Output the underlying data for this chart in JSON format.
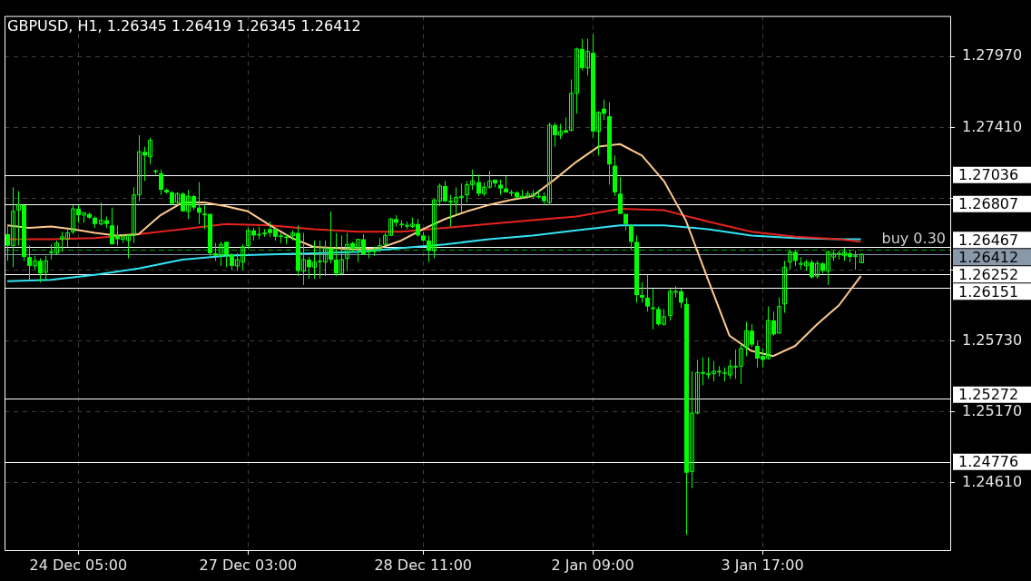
{
  "chart_data": {
    "type": "candlestick",
    "title": "GBPUSD, H1, 1.26345 1.26419 1.26345 1.26412",
    "categories": [
      null,
      null,
      null,
      null,
      null,
      null,
      null,
      null,
      null,
      null,
      null,
      null,
      null,
      "24 Dec 05:00",
      null,
      null,
      null,
      null,
      null,
      null,
      null,
      null,
      null,
      null,
      null,
      null,
      null,
      null,
      null,
      null,
      null,
      null,
      null,
      null,
      null,
      null,
      null,
      null,
      null,
      null,
      null,
      null,
      null,
      null,
      "27 Dec 03:00",
      null,
      null,
      null,
      null,
      null,
      null,
      null,
      null,
      null,
      null,
      null,
      null,
      null,
      null,
      null,
      null,
      null,
      null,
      null,
      null,
      null,
      null,
      null,
      null,
      null,
      null,
      null,
      null,
      null,
      null,
      null,
      "28 Dec 11:00",
      null,
      null,
      null,
      null,
      null,
      null,
      null,
      null,
      null,
      null,
      null,
      null,
      null,
      null,
      null,
      null,
      null,
      null,
      null,
      null,
      null,
      null,
      null,
      null,
      null,
      null,
      null,
      null,
      null,
      null,
      "2 Jan 09:00",
      null,
      null,
      null,
      null,
      null,
      null,
      null,
      null,
      null,
      null,
      null,
      null,
      null,
      null,
      null,
      null,
      null,
      null,
      null,
      null,
      null,
      null,
      null,
      null,
      null,
      null,
      null,
      null,
      null,
      null,
      "3 Jan 17:00",
      null,
      null,
      null,
      null,
      null,
      null,
      null,
      null,
      null,
      null,
      null,
      null,
      null,
      null,
      null,
      null,
      null,
      null,
      null,
      null,
      null,
      null,
      null,
      null,
      null,
      null,
      null,
      null,
      null,
      null,
      null,
      null,
      null,
      null
    ],
    "ohlc": [
      [
        1.2657,
        1.2664,
        1.2636,
        1.2648
      ],
      [
        1.2648,
        1.2694,
        1.2631,
        1.2675
      ],
      [
        1.2676,
        1.2691,
        1.2648,
        1.268
      ],
      [
        1.268,
        1.268,
        1.2636,
        1.2639
      ],
      [
        1.2639,
        1.2648,
        1.262,
        1.2632
      ],
      [
        1.2632,
        1.264,
        1.2629,
        1.2636
      ],
      [
        1.2636,
        1.2638,
        1.2619,
        1.2626
      ],
      [
        1.2627,
        1.264,
        1.262,
        1.2636
      ],
      [
        1.2643,
        1.2649,
        1.2637,
        1.2643
      ],
      [
        1.2642,
        1.2652,
        1.2641,
        1.265
      ],
      [
        1.2653,
        1.2659,
        1.2643,
        1.2655
      ],
      [
        1.2653,
        1.2661,
        1.2647,
        1.2658
      ],
      [
        1.2659,
        1.268,
        1.2657,
        1.2677
      ],
      [
        1.2677,
        1.268,
        1.2666,
        1.2672
      ],
      [
        1.2672,
        1.2674,
        1.2666,
        1.2674
      ],
      [
        1.2673,
        1.2674,
        1.2669,
        1.267
      ],
      [
        1.267,
        1.2671,
        1.2662,
        1.2665
      ],
      [
        1.2665,
        1.2682,
        1.2664,
        1.2668
      ],
      [
        1.2668,
        1.2671,
        1.2662,
        1.2665
      ],
      [
        1.2664,
        1.2678,
        1.2649,
        1.2649
      ],
      [
        1.2656,
        1.2664,
        1.2648,
        1.2653
      ],
      [
        1.2653,
        1.2657,
        1.265,
        1.2655
      ],
      [
        1.2652,
        1.2657,
        1.2638,
        1.2656
      ],
      [
        1.2656,
        1.2694,
        1.265,
        1.2688
      ],
      [
        1.2688,
        1.2735,
        1.2683,
        1.2722
      ],
      [
        1.2722,
        1.2726,
        1.2699,
        1.2719
      ],
      [
        1.2718,
        1.2733,
        1.2712,
        1.2731
      ],
      [
        1.2707,
        1.2708,
        1.2704,
        1.2707
      ],
      [
        1.2705,
        1.2708,
        1.2688,
        1.2692
      ],
      [
        1.2692,
        1.2693,
        1.2689,
        1.269
      ],
      [
        1.269,
        1.2691,
        1.268,
        1.2681
      ],
      [
        1.2682,
        1.269,
        1.268,
        1.2689
      ],
      [
        1.2689,
        1.269,
        1.2675,
        1.2675
      ],
      [
        1.2675,
        1.2692,
        1.2669,
        1.2687
      ],
      [
        1.2687,
        1.2688,
        1.2676,
        1.2678
      ],
      [
        1.2678,
        1.2698,
        1.2665,
        1.2674
      ],
      [
        1.2673,
        1.268,
        1.2661,
        1.2673
      ],
      [
        1.2673,
        1.2673,
        1.264,
        1.2642
      ],
      [
        1.2642,
        1.265,
        1.2636,
        1.264
      ],
      [
        1.264,
        1.2651,
        1.2632,
        1.2649
      ],
      [
        1.2651,
        1.2651,
        1.2631,
        1.2641
      ],
      [
        1.2641,
        1.2642,
        1.2629,
        1.2632
      ],
      [
        1.2632,
        1.2642,
        1.2628,
        1.2637
      ],
      [
        1.2635,
        1.2649,
        1.2629,
        1.2647
      ],
      [
        1.2648,
        1.2662,
        1.2645,
        1.266
      ],
      [
        1.266,
        1.2662,
        1.2652,
        1.2656
      ],
      [
        1.2657,
        1.2663,
        1.2653,
        1.2657
      ],
      [
        1.2658,
        1.2661,
        1.2655,
        1.2658
      ],
      [
        1.2661,
        1.2667,
        1.2655,
        1.2658
      ],
      [
        1.2661,
        1.2662,
        1.2652,
        1.2655
      ],
      [
        1.2656,
        1.2658,
        1.265,
        1.2655
      ],
      [
        1.2655,
        1.2657,
        1.2649,
        1.2654
      ],
      [
        1.2656,
        1.266,
        1.2652,
        1.2658
      ],
      [
        1.2658,
        1.2664,
        1.2624,
        1.2628
      ],
      [
        1.2628,
        1.2658,
        1.2617,
        1.2637
      ],
      [
        1.2637,
        1.2639,
        1.2622,
        1.2631
      ],
      [
        1.2631,
        1.2652,
        1.2622,
        1.2635
      ],
      [
        1.2636,
        1.2652,
        1.2622,
        1.2636
      ],
      [
        1.2635,
        1.2652,
        1.2624,
        1.2646
      ],
      [
        1.2646,
        1.2675,
        1.2634,
        1.2637
      ],
      [
        1.2637,
        1.2658,
        1.2624,
        1.2626
      ],
      [
        1.2626,
        1.2656,
        1.2626,
        1.2637
      ],
      [
        1.2638,
        1.2658,
        1.2628,
        1.2649
      ],
      [
        1.265,
        1.2651,
        1.2643,
        1.2646
      ],
      [
        1.2646,
        1.2653,
        1.2635,
        1.2653
      ],
      [
        1.2653,
        1.2657,
        1.2641,
        1.2641
      ],
      [
        1.2643,
        1.2645,
        1.2638,
        1.2644
      ],
      [
        1.2644,
        1.2647,
        1.264,
        1.2644
      ],
      [
        1.2645,
        1.2654,
        1.2643,
        1.2648
      ],
      [
        1.2649,
        1.2658,
        1.2648,
        1.2656
      ],
      [
        1.2656,
        1.267,
        1.2656,
        1.2669
      ],
      [
        1.2669,
        1.2672,
        1.2663,
        1.2666
      ],
      [
        1.2665,
        1.2668,
        1.2662,
        1.2665
      ],
      [
        1.2664,
        1.2667,
        1.2661,
        1.2664
      ],
      [
        1.2663,
        1.267,
        1.2662,
        1.2665
      ],
      [
        1.2665,
        1.2669,
        1.2655,
        1.2656
      ],
      [
        1.2656,
        1.2659,
        1.2651,
        1.2652
      ],
      [
        1.2652,
        1.2656,
        1.2635,
        1.2644
      ],
      [
        1.2644,
        1.2685,
        1.2638,
        1.2684
      ],
      [
        1.2683,
        1.2697,
        1.2679,
        1.2695
      ],
      [
        1.2695,
        1.2699,
        1.2682,
        1.2683
      ],
      [
        1.2683,
        1.2688,
        1.2663,
        1.2683
      ],
      [
        1.2682,
        1.2694,
        1.2672,
        1.2686
      ],
      [
        1.2686,
        1.2697,
        1.2674,
        1.2687
      ],
      [
        1.2688,
        1.2699,
        1.2682,
        1.2696
      ],
      [
        1.2696,
        1.2708,
        1.2692,
        1.2699
      ],
      [
        1.2698,
        1.2704,
        1.2687,
        1.2689
      ],
      [
        1.2689,
        1.2698,
        1.2687,
        1.2694
      ],
      [
        1.2694,
        1.2707,
        1.2693,
        1.2699
      ],
      [
        1.27,
        1.27,
        1.2694,
        1.2697
      ],
      [
        1.2696,
        1.27,
        1.2688,
        1.2693
      ],
      [
        1.2693,
        1.2703,
        1.269,
        1.269
      ],
      [
        1.269,
        1.2692,
        1.2687,
        1.269
      ],
      [
        1.269,
        1.2691,
        1.2685,
        1.2686
      ],
      [
        1.2687,
        1.2692,
        1.2685,
        1.2687
      ],
      [
        1.2687,
        1.2691,
        1.2685,
        1.2689
      ],
      [
        1.2687,
        1.2692,
        1.2685,
        1.2689
      ],
      [
        1.2687,
        1.2692,
        1.2685,
        1.2687
      ],
      [
        1.2687,
        1.269,
        1.268,
        1.2683
      ],
      [
        1.2682,
        1.2745,
        1.268,
        1.2743
      ],
      [
        1.2743,
        1.2745,
        1.2726,
        1.2735
      ],
      [
        1.2735,
        1.2744,
        1.2732,
        1.2738
      ],
      [
        1.2739,
        1.2749,
        1.2737,
        1.2737
      ],
      [
        1.2739,
        1.2779,
        1.2738,
        1.2768
      ],
      [
        1.2768,
        1.2804,
        1.2752,
        1.2803
      ],
      [
        1.2803,
        1.2811,
        1.2786,
        1.2788
      ],
      [
        1.2788,
        1.2811,
        1.2782,
        1.2801
      ],
      [
        1.28,
        1.2815,
        1.2733,
        1.2738
      ],
      [
        1.2738,
        1.2754,
        1.2719,
        1.2753
      ],
      [
        1.2756,
        1.2763,
        1.2747,
        1.2752
      ],
      [
        1.275,
        1.2761,
        1.2696,
        1.2712
      ],
      [
        1.2711,
        1.2719,
        1.2687,
        1.269
      ],
      [
        1.2689,
        1.2702,
        1.2673,
        1.2673
      ],
      [
        1.2673,
        1.2673,
        1.266,
        1.2665
      ],
      [
        1.2664,
        1.2665,
        1.2645,
        1.2651
      ],
      [
        1.2651,
        1.2656,
        1.2603,
        1.2609
      ],
      [
        1.2609,
        1.2619,
        1.2603,
        1.2607
      ],
      [
        1.2607,
        1.2625,
        1.2596,
        1.26
      ],
      [
        1.2599,
        1.2614,
        1.2582,
        1.2599
      ],
      [
        1.2598,
        1.26,
        1.2585,
        1.2586
      ],
      [
        1.2586,
        1.2598,
        1.2585,
        1.2592
      ],
      [
        1.2593,
        1.2614,
        1.2589,
        1.2612
      ],
      [
        1.2612,
        1.2616,
        1.2607,
        1.2612
      ],
      [
        1.2612,
        1.2614,
        1.2599,
        1.2603
      ],
      [
        1.2602,
        1.2607,
        1.242,
        1.2469
      ],
      [
        1.247,
        1.2549,
        1.2457,
        1.2516
      ],
      [
        1.2516,
        1.2558,
        1.2515,
        1.2548
      ],
      [
        1.2548,
        1.256,
        1.2538,
        1.2548
      ],
      [
        1.2547,
        1.256,
        1.2543,
        1.2547
      ],
      [
        1.2547,
        1.2557,
        1.2541,
        1.2549
      ],
      [
        1.2549,
        1.2553,
        1.2545,
        1.2549
      ],
      [
        1.2548,
        1.2552,
        1.2541,
        1.2547
      ],
      [
        1.2546,
        1.2558,
        1.2543,
        1.2553
      ],
      [
        1.2553,
        1.2566,
        1.2543,
        1.2553
      ],
      [
        1.2553,
        1.257,
        1.2539,
        1.2567
      ],
      [
        1.2568,
        1.2588,
        1.2561,
        1.2581
      ],
      [
        1.2581,
        1.2586,
        1.2568,
        1.257
      ],
      [
        1.2569,
        1.2573,
        1.2552,
        1.2559
      ],
      [
        1.2561,
        1.2567,
        1.2552,
        1.2558
      ],
      [
        1.2559,
        1.26,
        1.2558,
        1.2589
      ],
      [
        1.2589,
        1.2596,
        1.2577,
        1.2578
      ],
      [
        1.2579,
        1.2607,
        1.2579,
        1.26
      ],
      [
        1.2602,
        1.2636,
        1.2595,
        1.2631
      ],
      [
        1.2635,
        1.2645,
        1.2629,
        1.2643
      ],
      [
        1.2643,
        1.2644,
        1.2632,
        1.2636
      ],
      [
        1.2634,
        1.2639,
        1.2629,
        1.2634
      ],
      [
        1.2632,
        1.2637,
        1.2628,
        1.2635
      ],
      [
        1.2635,
        1.2637,
        1.2622,
        1.2623
      ],
      [
        1.2624,
        1.2636,
        1.2622,
        1.2634
      ],
      [
        1.2634,
        1.2635,
        1.2626,
        1.2628
      ],
      [
        1.2628,
        1.2644,
        1.2617,
        1.2643
      ],
      [
        1.2639,
        1.2644,
        1.2636,
        1.2642
      ],
      [
        1.2642,
        1.2644,
        1.2637,
        1.2642
      ],
      [
        1.264,
        1.2646,
        1.2636,
        1.2643
      ],
      [
        1.2642,
        1.2644,
        1.2635,
        1.2639
      ],
      [
        1.264,
        1.2644,
        1.2629,
        1.264
      ],
      [
        1.26345,
        1.26419,
        1.26345,
        1.26412
      ],
      null,
      null,
      null,
      null,
      null,
      null,
      null,
      null,
      null,
      null,
      null,
      null,
      null,
      null,
      null,
      null
    ],
    "color": "#00ff00",
    "series": [
      {
        "type": "line",
        "color": "#ffc88c",
        "values": [
          1.2664,
          null,
          null,
          null,
          1.2662,
          null,
          null,
          null,
          1.2663,
          null,
          null,
          null,
          1.2661,
          null,
          null,
          null,
          1.2658,
          null,
          null,
          null,
          1.2656,
          null,
          null,
          null,
          1.2657,
          null,
          null,
          null,
          1.2672,
          null,
          null,
          null,
          1.2682,
          null,
          null,
          null,
          1.2682,
          null,
          null,
          null,
          1.2679,
          null,
          null,
          null,
          1.2675,
          null,
          null,
          null,
          1.2664,
          null,
          null,
          null,
          1.2654,
          null,
          null,
          null,
          1.2647,
          null,
          null,
          null,
          1.2646,
          null,
          null,
          null,
          1.2645,
          null,
          null,
          null,
          1.2646,
          null,
          null,
          null,
          1.2652,
          null,
          null,
          null,
          1.2661,
          null,
          null,
          null,
          1.2669,
          null,
          null,
          null,
          1.2675,
          null,
          null,
          null,
          1.268,
          null,
          null,
          null,
          1.2684,
          null,
          null,
          null,
          1.2687,
          null,
          null,
          null,
          1.27,
          null,
          null,
          null,
          1.2714,
          null,
          null,
          null,
          1.2726,
          null,
          null,
          null,
          1.2728,
          null,
          null,
          null,
          1.2719,
          null,
          null,
          null,
          1.2699,
          null,
          null,
          null,
          1.2668,
          null,
          null,
          null,
          1.2622,
          null,
          null,
          null,
          1.2577,
          null,
          null,
          null,
          1.2565,
          null,
          null,
          null,
          1.2561,
          null,
          null,
          null,
          1.2569,
          null,
          null,
          null,
          1.2586,
          null,
          null,
          null,
          1.2601,
          null,
          null,
          null,
          1.2624,
          null,
          null,
          null,
          null,
          null,
          null,
          null,
          null,
          null,
          null,
          null,
          null,
          null,
          null,
          null,
          null
        ]
      },
      {
        "type": "line",
        "color": "#e8231c",
        "values": [
          1.2653,
          null,
          null,
          null,
          null,
          null,
          null,
          null,
          1.2653,
          null,
          null,
          null,
          null,
          null,
          null,
          null,
          1.2654,
          null,
          null,
          null,
          null,
          null,
          null,
          null,
          1.2657,
          null,
          null,
          null,
          null,
          null,
          null,
          null,
          1.2661,
          null,
          null,
          null,
          null,
          null,
          null,
          null,
          1.2665,
          null,
          null,
          null,
          null,
          null,
          null,
          null,
          1.2664,
          null,
          null,
          null,
          null,
          null,
          null,
          null,
          1.2661,
          null,
          null,
          null,
          null,
          null,
          null,
          null,
          1.2659,
          null,
          null,
          null,
          null,
          null,
          null,
          null,
          1.2659,
          null,
          null,
          null,
          null,
          null,
          null,
          null,
          1.2662,
          null,
          null,
          null,
          null,
          null,
          null,
          null,
          1.2665,
          null,
          null,
          null,
          null,
          null,
          null,
          null,
          1.2668,
          null,
          null,
          null,
          null,
          null,
          null,
          null,
          1.2671,
          null,
          null,
          null,
          null,
          null,
          null,
          null,
          1.2677,
          null,
          null,
          null,
          null,
          null,
          null,
          null,
          1.2676,
          null,
          null,
          null,
          null,
          null,
          null,
          null,
          1.2667,
          null,
          null,
          null,
          null,
          null,
          null,
          null,
          1.2659,
          null,
          null,
          null,
          null,
          null,
          null,
          null,
          1.2655,
          null,
          null,
          null,
          null,
          null,
          null,
          null,
          1.2653,
          null,
          null,
          null,
          1.2651,
          null,
          null,
          null,
          null,
          null,
          null,
          null,
          null,
          null,
          null,
          null,
          null,
          null,
          null,
          null,
          null
        ]
      },
      {
        "type": "line",
        "color": "#33e3f5",
        "values": [
          1.262,
          null,
          null,
          null,
          null,
          null,
          null,
          null,
          1.2621,
          null,
          null,
          null,
          null,
          null,
          null,
          null,
          1.2625,
          null,
          null,
          null,
          null,
          null,
          null,
          null,
          1.263,
          null,
          null,
          null,
          null,
          null,
          null,
          null,
          1.2637,
          null,
          null,
          null,
          null,
          null,
          null,
          null,
          1.264,
          null,
          null,
          null,
          null,
          null,
          null,
          null,
          1.2641,
          null,
          null,
          null,
          null,
          null,
          null,
          null,
          1.2642,
          null,
          null,
          null,
          null,
          null,
          null,
          null,
          1.2643,
          null,
          null,
          null,
          null,
          null,
          null,
          null,
          1.2646,
          null,
          null,
          null,
          null,
          null,
          null,
          null,
          1.2649,
          null,
          null,
          null,
          null,
          null,
          null,
          null,
          1.2653,
          null,
          null,
          null,
          null,
          null,
          null,
          null,
          1.2656,
          null,
          null,
          null,
          null,
          null,
          null,
          null,
          1.266,
          null,
          null,
          null,
          null,
          null,
          null,
          null,
          1.2664,
          null,
          null,
          null,
          null,
          null,
          null,
          null,
          1.2664,
          null,
          null,
          null,
          null,
          null,
          null,
          null,
          1.2661,
          null,
          null,
          null,
          null,
          null,
          null,
          null,
          1.2656,
          null,
          null,
          null,
          null,
          null,
          null,
          null,
          1.2654,
          null,
          null,
          null,
          null,
          null,
          null,
          null,
          1.2653,
          null,
          null,
          null,
          1.2653,
          null,
          null,
          null,
          null,
          null,
          null,
          null,
          null,
          null,
          null,
          null,
          null,
          null,
          null,
          null,
          null
        ]
      }
    ],
    "ylim": [
      1.2408,
      1.2829
    ],
    "yticks": [
      {
        "value": 1.2461,
        "label": "1.24610"
      },
      {
        "value": 1.2517,
        "label": "1.25170"
      },
      {
        "value": 1.2573,
        "label": "1.25730"
      },
      {
        "value": 1.2629,
        "label": null
      },
      {
        "value": 1.2685,
        "label": null
      },
      {
        "value": 1.2741,
        "label": "1.27410"
      },
      {
        "value": 1.2797,
        "label": "1.27970"
      }
    ],
    "grid": true,
    "ref_lines": [
      {
        "axis": "y",
        "value": 1.27036,
        "label": "1.27036",
        "color": "#ffffff"
      },
      {
        "axis": "y",
        "value": 1.26807,
        "label": "1.26807",
        "color": "#ffffff"
      },
      {
        "axis": "y",
        "value": 1.26467,
        "label": "1.26467",
        "color": "#ffffff"
      },
      {
        "axis": "y",
        "value": 1.2645,
        "label": "buy 0.30",
        "color": "#00a000",
        "line_style": "dashed"
      },
      {
        "axis": "y",
        "value": 1.26412,
        "label": "1.26412",
        "color": "#8a99aa"
      },
      {
        "axis": "y",
        "value": 1.26252,
        "label": "1.26252",
        "color": "#ffffff"
      },
      {
        "axis": "y",
        "value": 1.26151,
        "label": "1.26151",
        "color": "#ffffff"
      },
      {
        "axis": "y",
        "value": 1.25272,
        "label": "1.25272",
        "color": "#ffffff"
      },
      {
        "axis": "y",
        "value": 1.24776,
        "label": "1.24776",
        "color": "#ffffff"
      }
    ]
  }
}
